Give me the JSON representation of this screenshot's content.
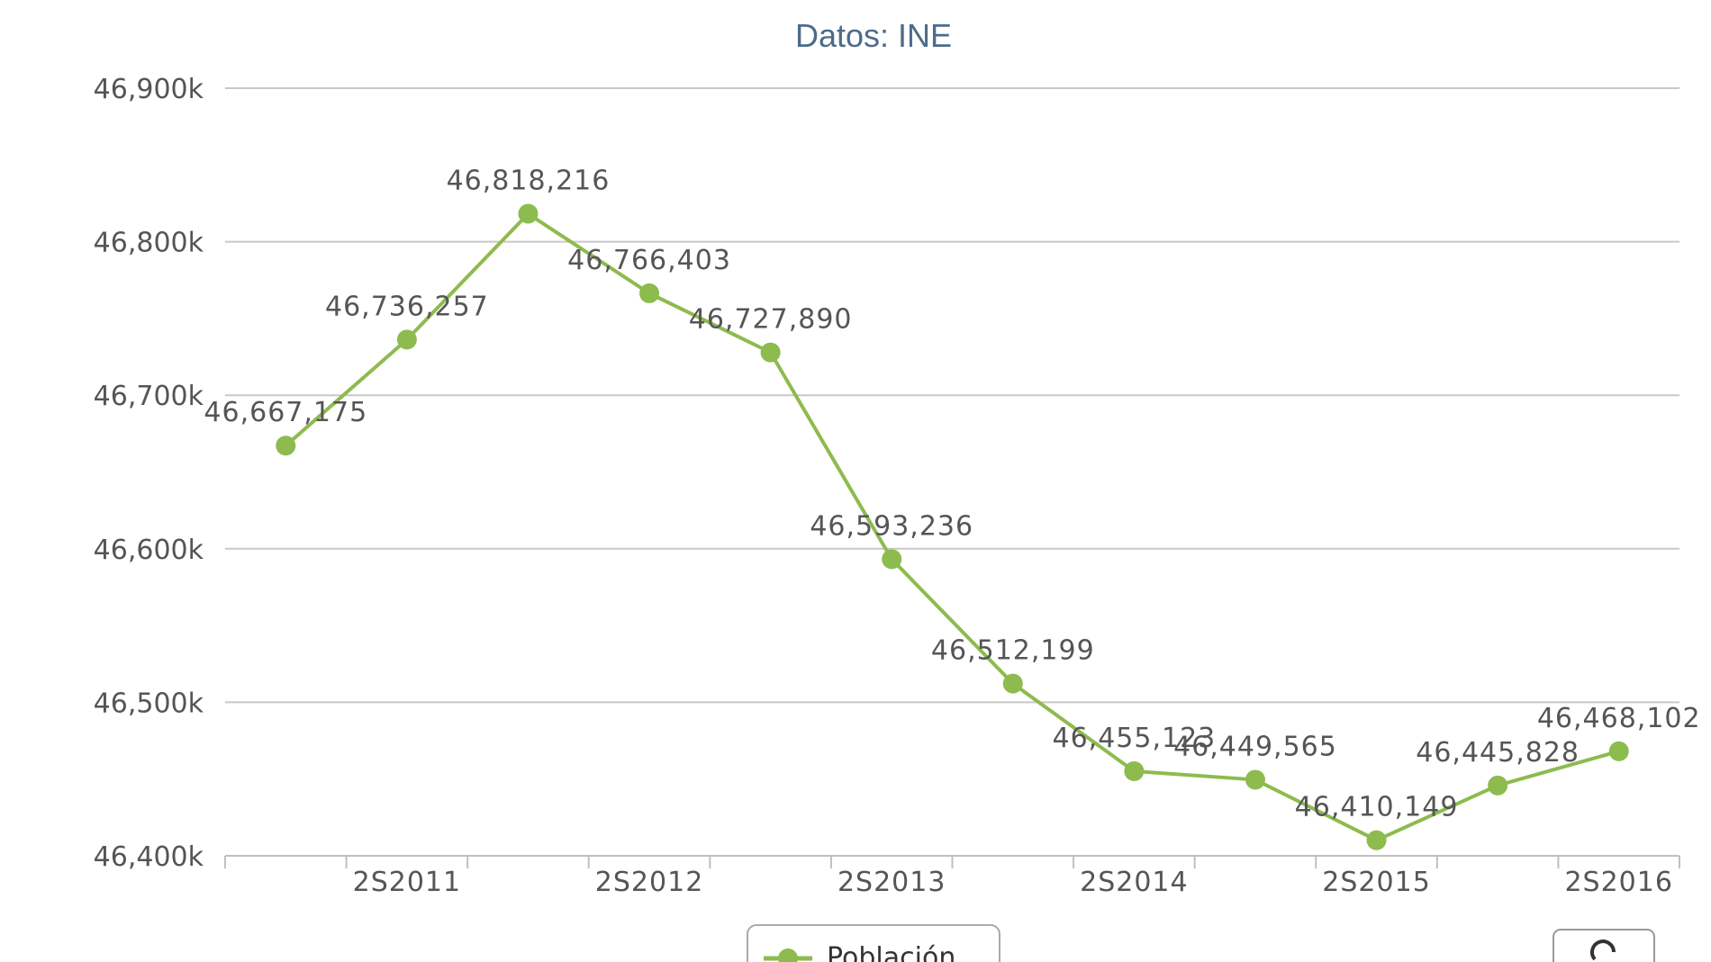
{
  "chart_data": {
    "type": "line",
    "title": "",
    "subtitle": "Datos: INE",
    "xlabel": "",
    "ylabel": "",
    "ylim": [
      46400000,
      46900000
    ],
    "y_ticks": [
      46400000,
      46500000,
      46600000,
      46700000,
      46800000,
      46900000
    ],
    "y_tick_labels": [
      "46,400k",
      "46,500k",
      "46,600k",
      "46,700k",
      "46,800k",
      "46,900k"
    ],
    "x_tick_labels": [
      "2S2011",
      "2S2012",
      "2S2013",
      "2S2014",
      "2S2015",
      "2S2016"
    ],
    "grid": true,
    "legend": {
      "position": "bottom",
      "entries": [
        "Población"
      ]
    },
    "series": [
      {
        "name": "Población",
        "color": "#8dbb4e",
        "values": [
          46667175,
          46736257,
          46818216,
          46766403,
          46727890,
          46593236,
          46512199,
          46455123,
          46449565,
          46410149,
          46445828,
          46468102
        ],
        "labels": [
          "46,667,175",
          "46,736,257",
          "46,818,216",
          "46,766,403",
          "46,727,890",
          "46,593,236",
          "46,512,199",
          "46,455,123",
          "46,449,565",
          "46,410,149",
          "46,445,828",
          "46,468,102"
        ]
      }
    ]
  },
  "icons": {
    "reset_button": "reset-icon"
  }
}
